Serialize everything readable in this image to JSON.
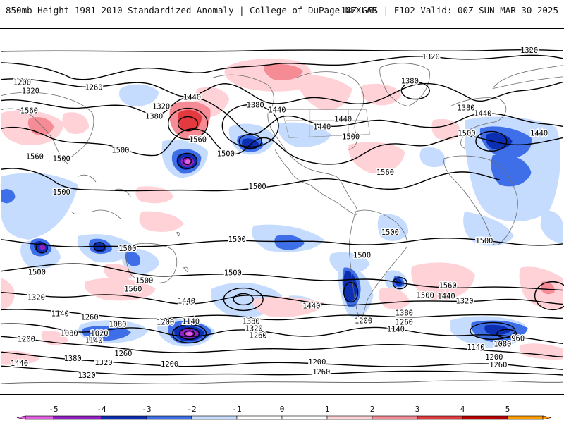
{
  "header": {
    "left_title": "850mb Height 1981-2010 Standardized Anomaly | College of DuPage NEXLAB",
    "right_title": "18Z GFS | F102 Valid: 00Z SUN MAR 30 2025"
  },
  "colors": {
    "neg5": "#e060e0",
    "neg4": "#9020c0",
    "neg3": "#0b2fb0",
    "neg2": "#3f6fe8",
    "neg1": "#c6dcff",
    "pos1": "#ffd2d8",
    "pos2": "#f58c95",
    "pos3": "#e23a3f",
    "pos4": "#b80000",
    "pos5": "#ff9c00"
  },
  "contour_labels": [
    {
      "text": "1320",
      "pos": [
        612,
        80
      ]
    },
    {
      "text": "1320",
      "pos": [
        752,
        71
      ]
    },
    {
      "text": "1200",
      "pos": [
        30,
        117
      ]
    },
    {
      "text": "1320",
      "pos": [
        42,
        129
      ]
    },
    {
      "text": "1260",
      "pos": [
        132,
        124
      ]
    },
    {
      "text": "1380",
      "pos": [
        582,
        115
      ]
    },
    {
      "text": "1440",
      "pos": [
        272,
        138
      ]
    },
    {
      "text": "1320",
      "pos": [
        228,
        151
      ]
    },
    {
      "text": "1380",
      "pos": [
        218,
        165
      ]
    },
    {
      "text": "1560",
      "pos": [
        40,
        157
      ]
    },
    {
      "text": "1380",
      "pos": [
        362,
        149
      ]
    },
    {
      "text": "1440",
      "pos": [
        393,
        156
      ]
    },
    {
      "text": "1380",
      "pos": [
        662,
        153
      ]
    },
    {
      "text": "1440",
      "pos": [
        686,
        161
      ]
    },
    {
      "text": "1440",
      "pos": [
        487,
        169
      ]
    },
    {
      "text": "1440",
      "pos": [
        457,
        180
      ]
    },
    {
      "text": "1500",
      "pos": [
        663,
        189
      ]
    },
    {
      "text": "1440",
      "pos": [
        766,
        189
      ]
    },
    {
      "text": "1560",
      "pos": [
        280,
        198
      ]
    },
    {
      "text": "1500",
      "pos": [
        498,
        194
      ]
    },
    {
      "text": "1500",
      "pos": [
        170,
        213
      ]
    },
    {
      "text": "1500",
      "pos": [
        320,
        218
      ]
    },
    {
      "text": "1560",
      "pos": [
        48,
        222
      ]
    },
    {
      "text": "1500",
      "pos": [
        86,
        225
      ]
    },
    {
      "text": "1560",
      "pos": [
        547,
        245
      ]
    },
    {
      "text": "1500",
      "pos": [
        365,
        265
      ]
    },
    {
      "text": "1500",
      "pos": [
        86,
        273
      ]
    },
    {
      "text": "1500",
      "pos": [
        554,
        330
      ]
    },
    {
      "text": "1500",
      "pos": [
        336,
        340
      ]
    },
    {
      "text": "1500",
      "pos": [
        688,
        342
      ]
    },
    {
      "text": "1500",
      "pos": [
        180,
        353
      ]
    },
    {
      "text": "1500",
      "pos": [
        514,
        363
      ]
    },
    {
      "text": "1500",
      "pos": [
        51,
        387
      ]
    },
    {
      "text": "1500",
      "pos": [
        330,
        388
      ]
    },
    {
      "text": "1500",
      "pos": [
        204,
        399
      ]
    },
    {
      "text": "1560",
      "pos": [
        188,
        411
      ]
    },
    {
      "text": "1560",
      "pos": [
        636,
        406
      ]
    },
    {
      "text": "1500",
      "pos": [
        604,
        420
      ]
    },
    {
      "text": "1440",
      "pos": [
        634,
        421
      ]
    },
    {
      "text": "1320",
      "pos": [
        660,
        428
      ]
    },
    {
      "text": "1320",
      "pos": [
        50,
        423
      ]
    },
    {
      "text": "1440",
      "pos": [
        264,
        428
      ]
    },
    {
      "text": "1440",
      "pos": [
        442,
        435
      ]
    },
    {
      "text": "1380",
      "pos": [
        574,
        445
      ]
    },
    {
      "text": "1140",
      "pos": [
        84,
        446
      ]
    },
    {
      "text": "1260",
      "pos": [
        126,
        451
      ]
    },
    {
      "text": "1200",
      "pos": [
        234,
        458
      ]
    },
    {
      "text": "1140",
      "pos": [
        270,
        457
      ]
    },
    {
      "text": "1380",
      "pos": [
        356,
        457
      ]
    },
    {
      "text": "1260",
      "pos": [
        574,
        458
      ]
    },
    {
      "text": "1080",
      "pos": [
        166,
        461
      ]
    },
    {
      "text": "1320",
      "pos": [
        360,
        467
      ]
    },
    {
      "text": "1200",
      "pos": [
        516,
        456
      ]
    },
    {
      "text": "1140",
      "pos": [
        562,
        468
      ]
    },
    {
      "text": "1260",
      "pos": [
        366,
        477
      ]
    },
    {
      "text": "1080",
      "pos": [
        97,
        474
      ]
    },
    {
      "text": "1020",
      "pos": [
        140,
        474
      ]
    },
    {
      "text": "1200",
      "pos": [
        36,
        482
      ]
    },
    {
      "text": "1140",
      "pos": [
        132,
        484
      ]
    },
    {
      "text": "960",
      "pos": [
        736,
        481
      ]
    },
    {
      "text": "1080",
      "pos": [
        714,
        489
      ]
    },
    {
      "text": "1140",
      "pos": [
        676,
        494
      ]
    },
    {
      "text": "1260",
      "pos": [
        174,
        503
      ]
    },
    {
      "text": "1380",
      "pos": [
        102,
        510
      ]
    },
    {
      "text": "1320",
      "pos": [
        146,
        516
      ]
    },
    {
      "text": "1200",
      "pos": [
        702,
        508
      ]
    },
    {
      "text": "1260",
      "pos": [
        708,
        519
      ]
    },
    {
      "text": "1440",
      "pos": [
        26,
        517
      ]
    },
    {
      "text": "1200",
      "pos": [
        240,
        518
      ]
    },
    {
      "text": "1200",
      "pos": [
        450,
        515
      ]
    },
    {
      "text": "1260",
      "pos": [
        456,
        529
      ]
    },
    {
      "text": "1320",
      "pos": [
        122,
        534
      ]
    }
  ],
  "colorbar": {
    "ticks": [
      "-5",
      "-4",
      "-3",
      "-2",
      "-1",
      "0",
      "1",
      "2",
      "3",
      "4",
      "5"
    ]
  }
}
